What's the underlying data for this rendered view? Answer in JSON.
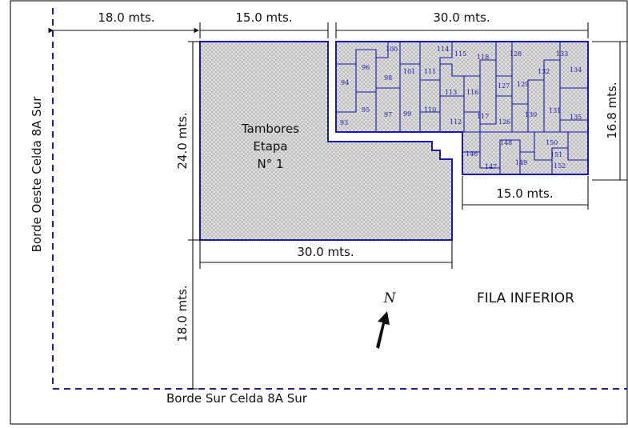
{
  "labels": {
    "dim_top_left": "18.0 mts.",
    "dim_top_mid": "15.0 mts.",
    "dim_top_right": "30.0 mts.",
    "dim_left_vertical": "24.0 mts.",
    "dim_lower_vertical": "18.0 mts.",
    "dim_right_vertical": "16.8 mts.",
    "dim_bottom_30": "30.0 mts.",
    "dim_bottom_15": "15.0 mts.",
    "area_title_line1": "Tambores",
    "area_title_line2": "Etapa",
    "area_title_line3": "N° 1",
    "west_border": "Borde Oeste Celda 8A Sur",
    "south_border": "Borde Sur Celda 8A Sur",
    "row_label": "FILA INFERIOR",
    "north": "N"
  },
  "cells": [
    {
      "num": "93"
    },
    {
      "num": "94"
    },
    {
      "num": "95"
    },
    {
      "num": "96"
    },
    {
      "num": "97"
    },
    {
      "num": "98"
    },
    {
      "num": "99"
    },
    {
      "num": "100"
    },
    {
      "num": "101"
    },
    {
      "num": "110"
    },
    {
      "num": "111"
    },
    {
      "num": "112"
    },
    {
      "num": "113"
    },
    {
      "num": "114"
    },
    {
      "num": "115"
    },
    {
      "num": "116"
    },
    {
      "num": "117"
    },
    {
      "num": "118"
    },
    {
      "num": "126"
    },
    {
      "num": "127"
    },
    {
      "num": "128"
    },
    {
      "num": "129"
    },
    {
      "num": "130"
    },
    {
      "num": "131"
    },
    {
      "num": "132"
    },
    {
      "num": "133"
    },
    {
      "num": "134"
    },
    {
      "num": "135"
    },
    {
      "num": "146"
    },
    {
      "num": "147"
    },
    {
      "num": "148"
    },
    {
      "num": "149"
    },
    {
      "num": "150"
    },
    {
      "num": "151"
    },
    {
      "num": "152"
    }
  ],
  "colors": {
    "outline_blue": "#1a1ab0",
    "hatch_gray": "#b8b8b8",
    "fill_gray": "#e4e4e4",
    "dashed_border": "#1a1ab0"
  }
}
